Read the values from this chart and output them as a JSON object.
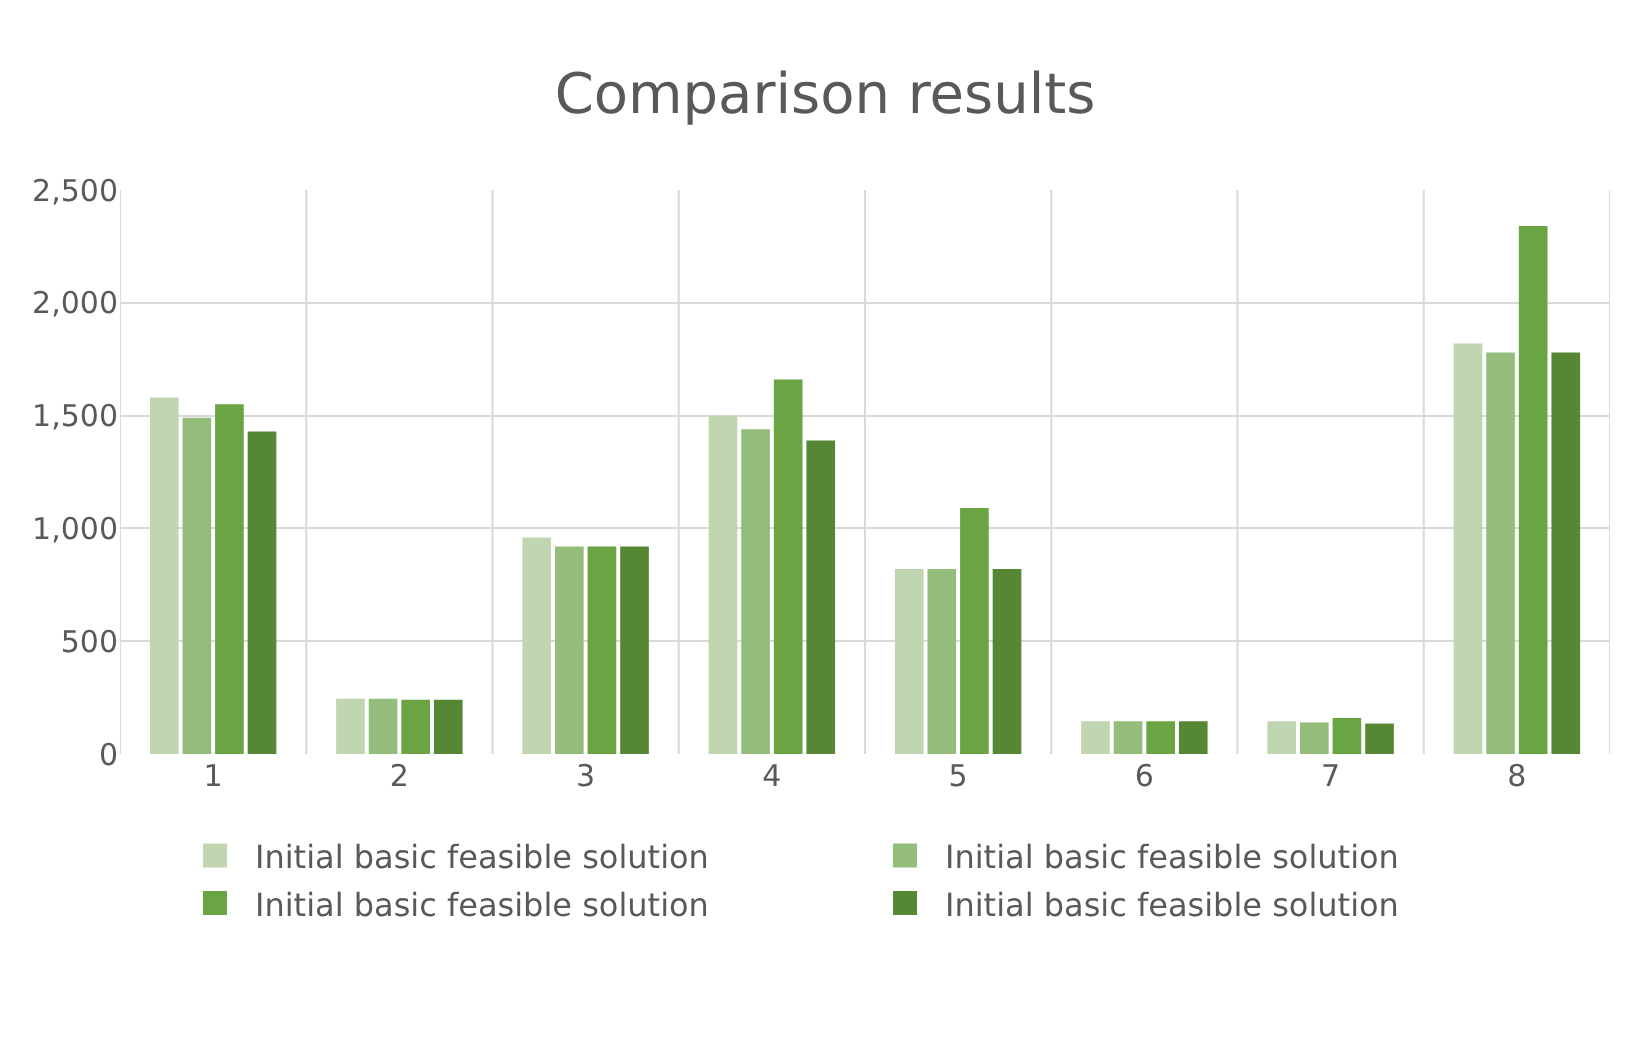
{
  "chart_data": {
    "type": "bar",
    "title": "Comparison results",
    "categories": [
      "1",
      "2",
      "3",
      "4",
      "5",
      "6",
      "7",
      "8"
    ],
    "series": [
      {
        "name": "Initial basic feasible solution",
        "color": "#bfd6b0",
        "values": [
          1580,
          245,
          960,
          1500,
          820,
          145,
          145,
          1820
        ]
      },
      {
        "name": "Initial basic feasible solution",
        "color": "#94bd7c",
        "values": [
          1490,
          245,
          920,
          1440,
          820,
          145,
          140,
          1780
        ]
      },
      {
        "name": "Initial basic feasible solution",
        "color": "#6aa443",
        "values": [
          1550,
          240,
          920,
          1660,
          1090,
          145,
          160,
          2340
        ]
      },
      {
        "name": "Initial basic feasible solution",
        "color": "#568735",
        "values": [
          1430,
          240,
          920,
          1390,
          820,
          145,
          135,
          1780
        ]
      }
    ],
    "ylim": [
      0,
      2500
    ],
    "yticks": [
      0,
      {
        "value": 500,
        "label": "500"
      },
      {
        "value": 1000,
        "label": "1,000"
      },
      {
        "value": 1500,
        "label": "1,500"
      },
      {
        "value": 2000,
        "label": "2,000"
      },
      {
        "value": 2500,
        "label": "2,500"
      }
    ],
    "grid": true,
    "legend": "bottom"
  }
}
